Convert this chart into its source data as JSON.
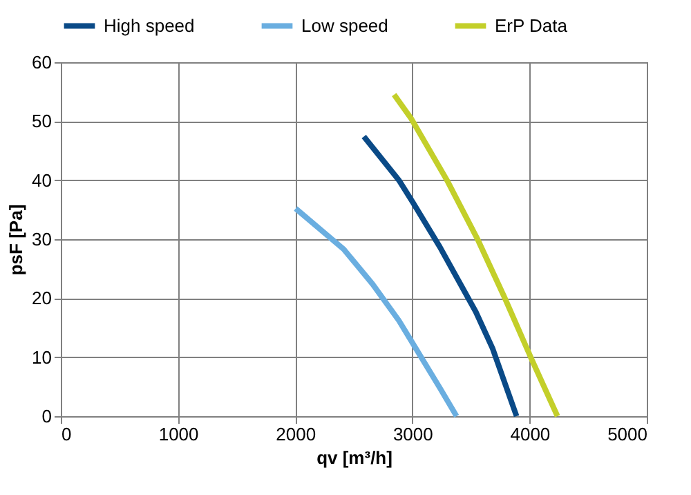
{
  "chart_data": {
    "type": "line",
    "xlabel": "qv [m³/h]",
    "ylabel": "psF [Pa]",
    "xlim": [
      0,
      5000
    ],
    "xticks": [
      0,
      1000,
      2000,
      3000,
      4000,
      5000
    ],
    "ylim": [
      0,
      60
    ],
    "yticks": [
      0,
      10,
      20,
      30,
      40,
      50,
      60
    ],
    "grid": true,
    "legend": "top",
    "marker": "none",
    "line_style": "solid",
    "series": [
      {
        "name": "High speed",
        "color": "#0a4a87",
        "x": [
          2586,
          2885,
          3008,
          3234,
          3541,
          3684,
          3889
        ],
        "values": [
          47.4,
          40,
          36.1,
          28.7,
          17.7,
          11.5,
          0
        ]
      },
      {
        "name": "Low speed",
        "color": "#6aaee0",
        "x": [
          2004,
          2414,
          2660,
          2885,
          3029,
          3234,
          3377
        ],
        "values": [
          35.2,
          28.3,
          22.4,
          16.2,
          11.5,
          4.8,
          0
        ]
      },
      {
        "name": "ErP Data",
        "color": "#c3cf2a",
        "x": [
          2844,
          2988,
          3295,
          3561,
          3787,
          4012,
          4238
        ],
        "values": [
          54.5,
          50.5,
          40,
          29.8,
          20.1,
          9.9,
          0
        ]
      }
    ]
  }
}
